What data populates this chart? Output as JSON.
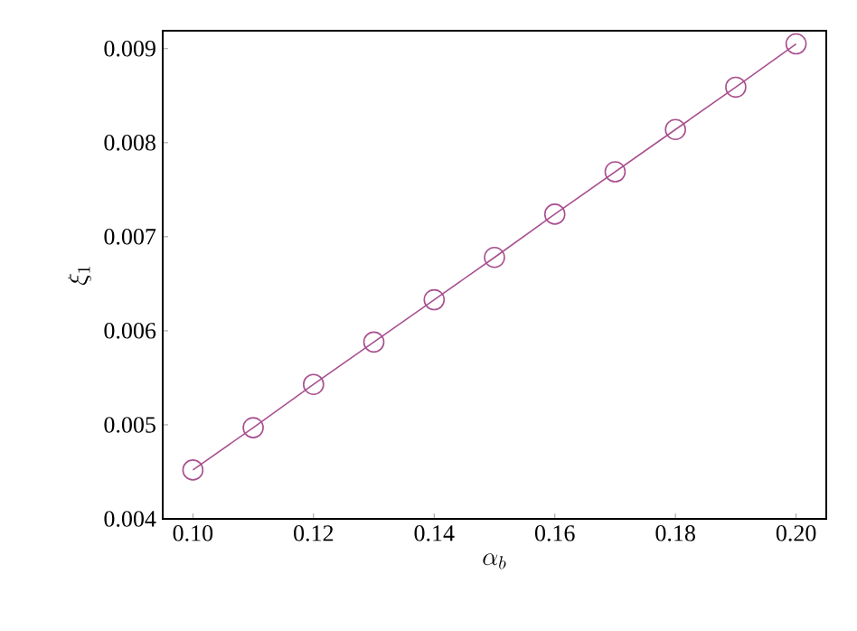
{
  "chart_data": {
    "type": "line",
    "xlabel": "\\alpha_b",
    "ylabel": "\\xi_1",
    "x": [
      0.1,
      0.11,
      0.12,
      0.13,
      0.14,
      0.15,
      0.16,
      0.17,
      0.18,
      0.19,
      0.2
    ],
    "series": [
      {
        "color": "#a8508f",
        "values": [
          0.00452,
          0.00497,
          0.00543,
          0.00588,
          0.00633,
          0.00678,
          0.00724,
          0.00769,
          0.00814,
          0.00859,
          0.00905
        ]
      }
    ],
    "marker": "circle",
    "line_style": "solid",
    "grid": false,
    "xlim": [
      0.095,
      0.205
    ],
    "ylim": [
      0.004,
      0.00919
    ],
    "xticks": [
      {
        "value": 0.1,
        "label": "0.10"
      },
      {
        "value": 0.12,
        "label": "0.12"
      },
      {
        "value": 0.14,
        "label": "0.14"
      },
      {
        "value": 0.16,
        "label": "0.16"
      },
      {
        "value": 0.18,
        "label": "0.18"
      },
      {
        "value": 0.2,
        "label": "0.20"
      }
    ],
    "yticks": [
      0.004,
      0.005,
      0.006,
      0.007,
      0.008,
      0.009
    ]
  }
}
